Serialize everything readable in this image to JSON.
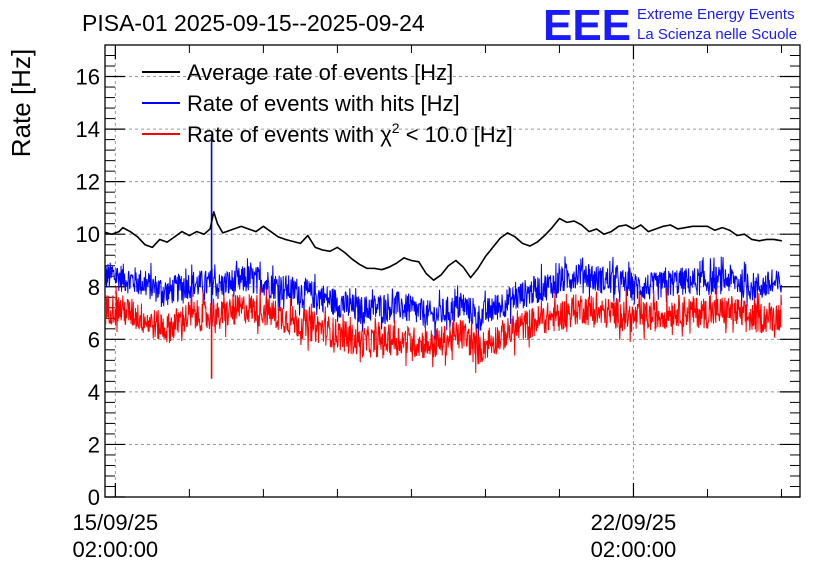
{
  "chart_data": {
    "type": "line",
    "title": "PISA-01 2025-09-15--2025-09-24",
    "xlabel": "",
    "ylabel": "Rate [Hz]",
    "ylim": [
      0,
      17.2
    ],
    "yticks": [
      0,
      2,
      4,
      6,
      8,
      10,
      12,
      14,
      16
    ],
    "xlim_days": [
      -0.14,
      9.25
    ],
    "xticks": [
      {
        "day": 0,
        "date": "15/09/25",
        "time": "02:00:00"
      },
      {
        "day": 7,
        "date": "22/09/25",
        "time": "02:00:00"
      }
    ],
    "grid": true,
    "legend_position": "top-left",
    "legend": {
      "avg": "Average rate of events [Hz]",
      "hits": "Rate of events with hits [Hz]",
      "chi_prefix": "Rate of events with ",
      "chi_symbol": "χ",
      "chi_exp": "2",
      "chi_suffix": " < 10.0 [Hz]"
    },
    "logo": {
      "text": "EEE",
      "line1": "Extreme Energy Events",
      "line2": "La Scienza nelle Scuole"
    },
    "colors": {
      "avg": "#000000",
      "hits": "#0000ff",
      "chi2": "#ff0000",
      "logo": "#1a1aff"
    },
    "series": [
      {
        "name": "Average rate of events [Hz]",
        "key": "avg",
        "x": [
          -0.18,
          -0.05,
          0.05,
          0.1,
          0.2,
          0.3,
          0.4,
          0.5,
          0.6,
          0.7,
          0.8,
          0.9,
          1.0,
          1.1,
          1.2,
          1.28,
          1.33,
          1.38,
          1.45,
          1.5,
          1.6,
          1.7,
          1.8,
          1.9,
          2.0,
          2.1,
          2.2,
          2.3,
          2.5,
          2.6,
          2.7,
          2.8,
          2.9,
          3.0,
          3.1,
          3.2,
          3.3,
          3.4,
          3.5,
          3.6,
          3.7,
          3.8,
          3.9,
          4.0,
          4.1,
          4.2,
          4.3,
          4.4,
          4.5,
          4.6,
          4.7,
          4.8,
          4.9,
          5.0,
          5.2,
          5.3,
          5.4,
          5.5,
          5.6,
          5.7,
          5.8,
          5.9,
          6.0,
          6.1,
          6.2,
          6.3,
          6.4,
          6.5,
          6.6,
          6.7,
          6.8,
          6.9,
          7.0,
          7.1,
          7.2,
          7.3,
          7.4,
          7.5,
          7.6,
          7.8,
          8.0,
          8.1,
          8.2,
          8.3,
          8.4,
          8.5,
          8.6,
          8.7,
          8.8,
          8.9,
          9.0
        ],
        "values": [
          10.1,
          10.0,
          10.1,
          10.25,
          10.1,
          9.9,
          9.6,
          9.5,
          9.8,
          9.7,
          9.9,
          10.1,
          9.95,
          10.1,
          10.0,
          10.2,
          10.85,
          10.4,
          10.05,
          10.1,
          10.2,
          10.3,
          10.2,
          10.1,
          10.3,
          10.1,
          9.9,
          9.8,
          9.65,
          9.95,
          9.5,
          9.4,
          9.35,
          9.5,
          9.3,
          9.05,
          8.85,
          8.7,
          8.7,
          8.65,
          8.75,
          8.9,
          9.1,
          9.0,
          8.95,
          8.5,
          8.25,
          8.45,
          8.8,
          9.0,
          8.75,
          8.35,
          8.7,
          9.15,
          9.85,
          10.05,
          9.9,
          9.65,
          9.55,
          9.7,
          9.95,
          10.25,
          10.6,
          10.45,
          10.5,
          10.35,
          10.1,
          10.2,
          10.0,
          10.1,
          10.3,
          10.35,
          10.2,
          10.35,
          10.1,
          10.2,
          10.3,
          10.35,
          10.2,
          10.3,
          10.3,
          10.15,
          10.25,
          10.15,
          9.95,
          10.0,
          9.8,
          9.75,
          9.8,
          9.8,
          9.75
        ]
      },
      {
        "name": "Rate of events with hits [Hz]",
        "key": "hits",
        "x": [
          -0.18,
          0.0,
          0.3,
          0.5,
          0.7,
          1.0,
          1.28,
          1.33,
          1.38,
          1.5,
          1.8,
          2.0,
          2.2,
          2.5,
          2.8,
          3.0,
          3.3,
          3.5,
          3.8,
          4.0,
          4.3,
          4.5,
          4.7,
          4.9,
          5.0,
          5.2,
          5.5,
          5.8,
          6.0,
          6.3,
          6.5,
          6.8,
          7.0,
          7.3,
          7.6,
          8.0,
          8.3,
          8.6,
          9.0
        ],
        "values": [
          8.4,
          8.4,
          8.2,
          8.0,
          7.8,
          8.1,
          8.1,
          8.3,
          8.0,
          8.1,
          8.3,
          8.2,
          8.0,
          7.8,
          7.6,
          7.4,
          7.1,
          7.2,
          7.3,
          7.1,
          6.9,
          7.1,
          7.3,
          6.8,
          7.0,
          7.3,
          7.7,
          8.0,
          8.2,
          8.6,
          8.3,
          8.2,
          8.0,
          8.0,
          8.2,
          8.2,
          8.3,
          8.0,
          8.1
        ],
        "spike": {
          "x": 1.3,
          "top": 13.8,
          "bottom": 6.5
        }
      },
      {
        "name": "Rate of events with chi2 < 10.0 [Hz]",
        "key": "chi2",
        "x": [
          -0.18,
          0.0,
          0.3,
          0.5,
          0.7,
          1.0,
          1.28,
          1.33,
          1.38,
          1.5,
          1.8,
          2.0,
          2.2,
          2.5,
          2.8,
          3.0,
          3.3,
          3.5,
          3.8,
          4.0,
          4.3,
          4.5,
          4.7,
          4.9,
          5.0,
          5.2,
          5.5,
          5.8,
          6.0,
          6.3,
          6.5,
          6.8,
          7.0,
          7.3,
          7.6,
          8.0,
          8.3,
          8.6,
          9.0
        ],
        "values": [
          7.1,
          7.2,
          6.9,
          6.6,
          6.4,
          6.9,
          6.9,
          7.1,
          6.8,
          7.0,
          7.2,
          7.1,
          6.9,
          6.6,
          6.4,
          6.2,
          5.9,
          5.9,
          6.0,
          5.9,
          5.8,
          6.0,
          6.2,
          5.6,
          5.8,
          6.1,
          6.5,
          6.8,
          6.9,
          7.2,
          7.0,
          7.0,
          6.8,
          6.9,
          7.1,
          7.0,
          7.1,
          6.8,
          6.9
        ],
        "spike": {
          "x": 1.3,
          "top": 7.3,
          "bottom": 4.5
        }
      }
    ]
  }
}
